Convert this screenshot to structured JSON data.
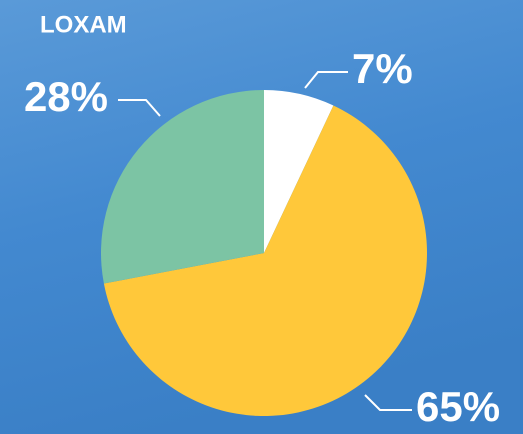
{
  "chart_data": {
    "type": "pie",
    "title": "LOXAM",
    "values": [
      7,
      65,
      28
    ],
    "value_labels": [
      "7%",
      "65%",
      "28%"
    ],
    "colors": [
      "#ffffff",
      "#ffc83a",
      "#7cc4a4"
    ]
  }
}
